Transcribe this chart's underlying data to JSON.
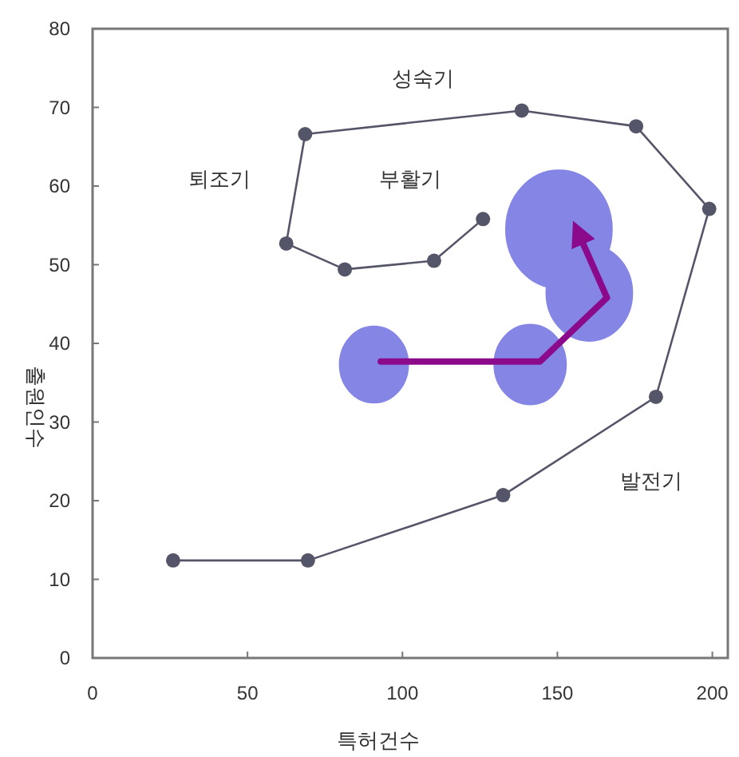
{
  "chart_data": {
    "type": "line",
    "xlabel": "특허건수",
    "ylabel": "출원인수",
    "xlim": [
      0,
      205
    ],
    "ylim": [
      0,
      80
    ],
    "xticks": [
      0,
      50,
      100,
      150,
      200
    ],
    "yticks": [
      0,
      10,
      20,
      30,
      40,
      50,
      60,
      70,
      80
    ],
    "grid": false,
    "series": [
      {
        "color": "#55556a",
        "marker": "circle",
        "line_style": "solid",
        "x": [
          26,
          69.5,
          132.5,
          181.8,
          199,
          175.4,
          138.5,
          68.6,
          62.5,
          81.4,
          110.2,
          126
        ],
        "values": [
          12.4,
          12.4,
          20.7,
          33.2,
          57.1,
          67.6,
          69.6,
          66.6,
          52.7,
          49.4,
          50.5,
          55.8
        ]
      },
      {
        "type": "bubble",
        "color": "#8585e6",
        "x": [
          90.8,
          141.2,
          160.3,
          150.5
        ],
        "values": [
          37.3,
          37.3,
          46.4,
          54.5
        ],
        "sizes": [
          0.42,
          0.46,
          0.66,
          1
        ]
      },
      {
        "color": "#8b0a8b",
        "marker": "none",
        "line_style": "solid",
        "x": [
          93,
          144.4,
          166,
          156.7
        ],
        "values": [
          37.7,
          37.7,
          45.8,
          54.1
        ]
      }
    ],
    "annotations": [
      "성숙기",
      "퇴조기",
      "부활기",
      "발전기"
    ]
  }
}
